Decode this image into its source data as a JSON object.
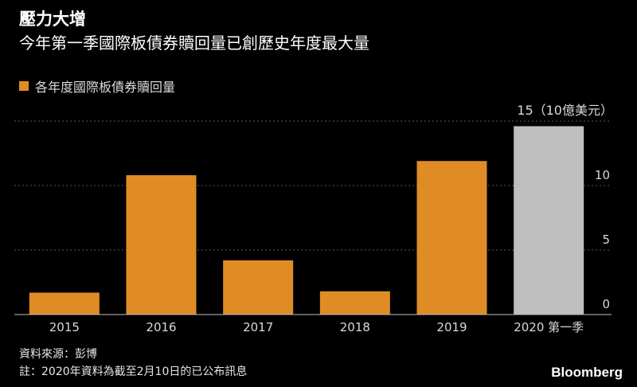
{
  "header": {
    "title": "壓力大增",
    "subtitle": "今年第一季國際板債券贖回量已創歷史年度最大量"
  },
  "footer": {
    "source": "資料來源：彭博",
    "note": "註：2020年資料為截至2月10日的已公布訊息",
    "brand": "Bloomberg"
  },
  "colors": {
    "background": "#000000",
    "bar_default": "#e08c24",
    "bar_highlight": "#bfbfbf",
    "grid": "#5a5a5a",
    "axis_text": "#d9d9d9"
  },
  "chart_data": {
    "type": "bar",
    "unit_label": "15（10億美元）",
    "categories": [
      "2015",
      "2016",
      "2017",
      "2018",
      "2019",
      "2020 第一季"
    ],
    "series": [
      {
        "name": "各年度國際板債券贖回量",
        "values": [
          1.7,
          10.8,
          4.2,
          1.8,
          11.9,
          14.6
        ]
      }
    ],
    "highlight_index": 5,
    "ylim": [
      0,
      15
    ],
    "yticks": [
      0,
      5,
      10,
      15
    ],
    "ytick_labels": [
      "0",
      "5",
      "10",
      ""
    ],
    "grid": true,
    "legend_position": "top-left"
  }
}
